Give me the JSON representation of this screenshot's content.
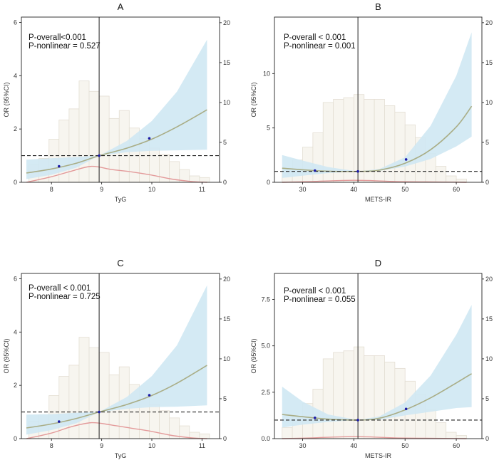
{
  "figure": {
    "ylabel": "OR (95%CI)",
    "colors": {
      "ci_band": "#cfe8f3",
      "or_line": "#a9ad86",
      "hist_fill": "#f7f5ef",
      "hist_edge": "#e3ded3",
      "density": "#e39a9a",
      "ref_dot": "#1a1aa8",
      "axis": "#222222"
    }
  },
  "chart_data": [
    {
      "type": "line",
      "panel": "A",
      "title": "A",
      "xlabel": "TyG",
      "ylabel": "OR (95%CI)",
      "annotation": [
        "P-overall<0.001",
        "P-nonlinear = 0.527"
      ],
      "xlim": [
        7.4,
        11.35
      ],
      "ylim_left": [
        0,
        6.2
      ],
      "ylim_right": [
        0,
        20.7
      ],
      "xticks": [
        8,
        9,
        10,
        11
      ],
      "yticks_left": [
        0,
        2,
        4,
        6
      ],
      "yticks_right": [
        0,
        5,
        10,
        15,
        20
      ],
      "reference_x": 8.95,
      "reference_y": 1,
      "or_curve": {
        "x": [
          7.5,
          8.0,
          8.5,
          8.95,
          9.5,
          10.0,
          10.5,
          11.1
        ],
        "y": [
          0.35,
          0.5,
          0.72,
          1.0,
          1.28,
          1.62,
          2.08,
          2.72
        ]
      },
      "ci_lower": [
        0.12,
        0.28,
        0.55,
        1.0,
        1.13,
        1.18,
        1.2,
        1.22
      ],
      "ci_upper": [
        0.85,
        0.9,
        0.95,
        1.0,
        1.55,
        2.3,
        3.4,
        5.35
      ],
      "points": {
        "x": [
          8.15,
          8.95,
          9.95
        ],
        "y": [
          0.6,
          1.0,
          1.65
        ]
      },
      "histogram": {
        "bins": [
          [
            7.55,
            7.75
          ],
          [
            7.75,
            7.95
          ],
          [
            7.95,
            8.15
          ],
          [
            8.15,
            8.35
          ],
          [
            8.35,
            8.55
          ],
          [
            8.55,
            8.75
          ],
          [
            8.75,
            8.95
          ],
          [
            8.95,
            9.15
          ],
          [
            9.15,
            9.35
          ],
          [
            9.35,
            9.55
          ],
          [
            9.55,
            9.75
          ],
          [
            9.75,
            9.95
          ],
          [
            9.95,
            10.15
          ],
          [
            10.15,
            10.35
          ],
          [
            10.35,
            10.55
          ],
          [
            10.55,
            10.75
          ],
          [
            10.75,
            10.95
          ],
          [
            10.95,
            11.15
          ]
        ],
        "right_axis_values": [
          2.2,
          3.0,
          5.4,
          7.8,
          9.2,
          12.7,
          11.4,
          10.8,
          8.0,
          9.0,
          6.8,
          5.5,
          4.3,
          3.5,
          2.6,
          1.6,
          0.8,
          0.6
        ]
      },
      "density": {
        "x": [
          7.5,
          8.0,
          8.4,
          8.8,
          9.2,
          9.6,
          10.0,
          10.4,
          10.8,
          11.1
        ],
        "right_axis_values": [
          0.0,
          0.7,
          1.4,
          2.0,
          1.6,
          1.3,
          0.9,
          0.4,
          0.1,
          0.0
        ]
      }
    },
    {
      "type": "line",
      "panel": "B",
      "title": "B",
      "xlabel": "METS-IR",
      "ylabel": "OR (95%CI)",
      "annotation": [
        "P-overall < 0.001",
        "P-nonlinear = 0.001"
      ],
      "xlim": [
        24.5,
        65
      ],
      "ylim_left": [
        0,
        15.2
      ],
      "ylim_right": [
        0,
        20.7
      ],
      "xticks": [
        30,
        40,
        50,
        60
      ],
      "yticks_left": [
        0,
        5,
        10
      ],
      "yticks_right": [
        0,
        5,
        10,
        15,
        20
      ],
      "reference_x": 40.8,
      "reference_y": 1,
      "or_curve": {
        "x": [
          26,
          30,
          35,
          40.8,
          45,
          50,
          55,
          60,
          63
        ],
        "y": [
          1.3,
          1.15,
          1.02,
          1.0,
          1.12,
          1.75,
          3.0,
          5.1,
          7.0
        ]
      },
      "ci_lower": [
        0.4,
        0.6,
        0.85,
        1.0,
        1.05,
        1.45,
        2.15,
        3.3,
        4.2
      ],
      "ci_upper": [
        2.5,
        2.0,
        1.4,
        1.0,
        1.22,
        2.3,
        5.2,
        9.8,
        13.8
      ],
      "points": {
        "x": [
          32.4,
          40.8,
          50.2
        ],
        "y": [
          1.08,
          1.0,
          2.1
        ]
      },
      "histogram": {
        "bins": [
          [
            26,
            28
          ],
          [
            28,
            30
          ],
          [
            30,
            32
          ],
          [
            32,
            34
          ],
          [
            34,
            36
          ],
          [
            36,
            38
          ],
          [
            38,
            40
          ],
          [
            40,
            42
          ],
          [
            42,
            44
          ],
          [
            44,
            46
          ],
          [
            46,
            48
          ],
          [
            48,
            50
          ],
          [
            50,
            52
          ],
          [
            52,
            54
          ],
          [
            54,
            56
          ],
          [
            56,
            58
          ],
          [
            58,
            60
          ],
          [
            60,
            62
          ]
        ],
        "right_axis_values": [
          1.4,
          2.8,
          4.4,
          6.2,
          10.0,
          10.4,
          10.6,
          11.0,
          10.4,
          10.4,
          9.6,
          8.8,
          7.2,
          5.6,
          3.6,
          2.0,
          0.8,
          0.4
        ]
      },
      "density": {
        "x": [
          26,
          32,
          36,
          40,
          44,
          48,
          54,
          62
        ],
        "right_axis_values": [
          0.0,
          0.1,
          0.2,
          0.25,
          0.2,
          0.1,
          0.05,
          0.0
        ]
      }
    },
    {
      "type": "line",
      "panel": "C",
      "title": "C",
      "xlabel": "TyG",
      "ylabel": "OR (95%CI)",
      "annotation": [
        "P-overall < 0.001",
        "P-nonlinear = 0.725"
      ],
      "xlim": [
        7.4,
        11.35
      ],
      "ylim_left": [
        0,
        6.2
      ],
      "ylim_right": [
        0,
        20.7
      ],
      "xticks": [
        8,
        9,
        10,
        11
      ],
      "yticks_left": [
        0,
        2,
        4,
        6
      ],
      "yticks_right": [
        0,
        5,
        10,
        15,
        20
      ],
      "reference_x": 8.95,
      "reference_y": 1,
      "or_curve": {
        "x": [
          7.5,
          8.0,
          8.5,
          8.95,
          9.5,
          10.0,
          10.5,
          11.1
        ],
        "y": [
          0.4,
          0.55,
          0.76,
          1.0,
          1.28,
          1.62,
          2.08,
          2.75
        ]
      },
      "ci_lower": [
        0.15,
        0.32,
        0.58,
        1.0,
        1.12,
        1.18,
        1.2,
        1.25
      ],
      "ci_upper": [
        0.9,
        0.92,
        0.97,
        1.0,
        1.56,
        2.35,
        3.5,
        5.75
      ],
      "points": {
        "x": [
          8.15,
          8.95,
          9.95
        ],
        "y": [
          0.64,
          1.0,
          1.63
        ]
      },
      "histogram": {
        "bins": [
          [
            7.55,
            7.75
          ],
          [
            7.75,
            7.95
          ],
          [
            7.95,
            8.15
          ],
          [
            8.15,
            8.35
          ],
          [
            8.35,
            8.55
          ],
          [
            8.55,
            8.75
          ],
          [
            8.75,
            8.95
          ],
          [
            8.95,
            9.15
          ],
          [
            9.15,
            9.35
          ],
          [
            9.35,
            9.55
          ],
          [
            9.55,
            9.75
          ],
          [
            9.75,
            9.95
          ],
          [
            9.95,
            10.15
          ],
          [
            10.15,
            10.35
          ],
          [
            10.35,
            10.55
          ],
          [
            10.55,
            10.75
          ],
          [
            10.75,
            10.95
          ],
          [
            10.95,
            11.15
          ]
        ],
        "right_axis_values": [
          2.2,
          3.0,
          5.4,
          7.8,
          9.2,
          12.7,
          11.4,
          10.8,
          8.0,
          9.0,
          6.8,
          5.5,
          4.3,
          3.5,
          2.6,
          1.6,
          0.8,
          0.6
        ]
      },
      "density": {
        "x": [
          7.5,
          8.0,
          8.4,
          8.8,
          9.2,
          9.6,
          10.0,
          10.4,
          10.8,
          11.1
        ],
        "right_axis_values": [
          0.0,
          0.7,
          1.5,
          2.0,
          1.7,
          1.3,
          0.9,
          0.4,
          0.1,
          0.0
        ]
      }
    },
    {
      "type": "line",
      "panel": "D",
      "title": "D",
      "xlabel": "METS-IR",
      "ylabel": "OR (95%CI)",
      "annotation": [
        "P-overall < 0.001",
        "P-nonlinear = 0.055"
      ],
      "xlim": [
        24.5,
        65
      ],
      "ylim_left": [
        0,
        8.9
      ],
      "ylim_right": [
        0,
        20.7
      ],
      "xticks": [
        30,
        40,
        50,
        60
      ],
      "yticks_left": [
        0.0,
        2.5,
        5.0,
        7.5
      ],
      "yticks_right": [
        0,
        5,
        10,
        15,
        20
      ],
      "reference_x": 40.8,
      "reference_y": 1,
      "or_curve": {
        "x": [
          26,
          30,
          35,
          40.8,
          45,
          50,
          55,
          60,
          63
        ],
        "y": [
          1.3,
          1.18,
          1.05,
          1.0,
          1.1,
          1.55,
          2.2,
          3.0,
          3.5
        ]
      },
      "ci_lower": [
        0.6,
        0.75,
        0.9,
        1.0,
        1.02,
        1.25,
        1.45,
        1.65,
        1.7
      ],
      "ci_upper": [
        2.8,
        2.0,
        1.3,
        1.0,
        1.2,
        1.95,
        3.4,
        5.6,
        7.2
      ],
      "points": {
        "x": [
          32.4,
          40.8,
          50.2
        ],
        "y": [
          1.12,
          1.0,
          1.6
        ]
      },
      "histogram": {
        "bins": [
          [
            26,
            28
          ],
          [
            28,
            30
          ],
          [
            30,
            32
          ],
          [
            32,
            34
          ],
          [
            34,
            36
          ],
          [
            36,
            38
          ],
          [
            38,
            40
          ],
          [
            40,
            42
          ],
          [
            42,
            44
          ],
          [
            44,
            46
          ],
          [
            46,
            48
          ],
          [
            48,
            50
          ],
          [
            50,
            52
          ],
          [
            52,
            54
          ],
          [
            54,
            56
          ],
          [
            56,
            58
          ],
          [
            58,
            60
          ],
          [
            60,
            62
          ]
        ],
        "right_axis_values": [
          1.4,
          2.8,
          4.4,
          6.2,
          10.0,
          10.8,
          11.0,
          11.5,
          10.4,
          10.4,
          9.6,
          8.8,
          7.2,
          5.6,
          3.6,
          2.0,
          0.8,
          0.4
        ]
      },
      "density": {
        "x": [
          26,
          32,
          36,
          40,
          44,
          48,
          54,
          62
        ],
        "right_axis_values": [
          0.0,
          0.1,
          0.2,
          0.25,
          0.2,
          0.1,
          0.05,
          0.0
        ]
      }
    }
  ]
}
